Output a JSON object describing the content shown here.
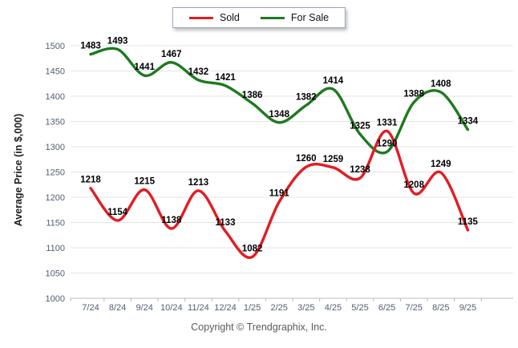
{
  "legend": {
    "items": [
      {
        "label": "Sold",
        "color": "#e31b23"
      },
      {
        "label": "For Sale",
        "color": "#1d7a1f"
      }
    ]
  },
  "footer": {
    "copyright": "Copyright © Trendgraphix, Inc."
  },
  "chart_data": {
    "type": "line",
    "title": "",
    "xlabel": "",
    "ylabel": "Average Price (in $,000)",
    "categories": [
      "7/24",
      "8/24",
      "9/24",
      "10/24",
      "11/24",
      "12/24",
      "1/25",
      "2/25",
      "3/25",
      "4/25",
      "5/25",
      "6/25",
      "7/25",
      "8/25",
      "9/25"
    ],
    "series": [
      {
        "name": "Sold",
        "color": "#e31b23",
        "values": [
          1218,
          1154,
          1215,
          1138,
          1213,
          1133,
          1082,
          1191,
          1260,
          1259,
          1238,
          1331,
          1208,
          1249,
          1135
        ]
      },
      {
        "name": "For Sale",
        "color": "#1d7a1f",
        "values": [
          1483,
          1493,
          1441,
          1467,
          1432,
          1421,
          1386,
          1348,
          1382,
          1414,
          1325,
          1290,
          1388,
          1408,
          1334
        ]
      }
    ],
    "ylim": [
      1000,
      1500
    ],
    "yticks": [
      1000,
      1050,
      1100,
      1150,
      1200,
      1250,
      1300,
      1350,
      1400,
      1450,
      1500
    ],
    "grid": true,
    "data_labels": true,
    "legend_position": "top-center"
  },
  "colors": {
    "grid": "#e4e4e4",
    "axis": "#b4bcc6",
    "tick_text": "#515e71",
    "data_label_text": "#000000"
  }
}
